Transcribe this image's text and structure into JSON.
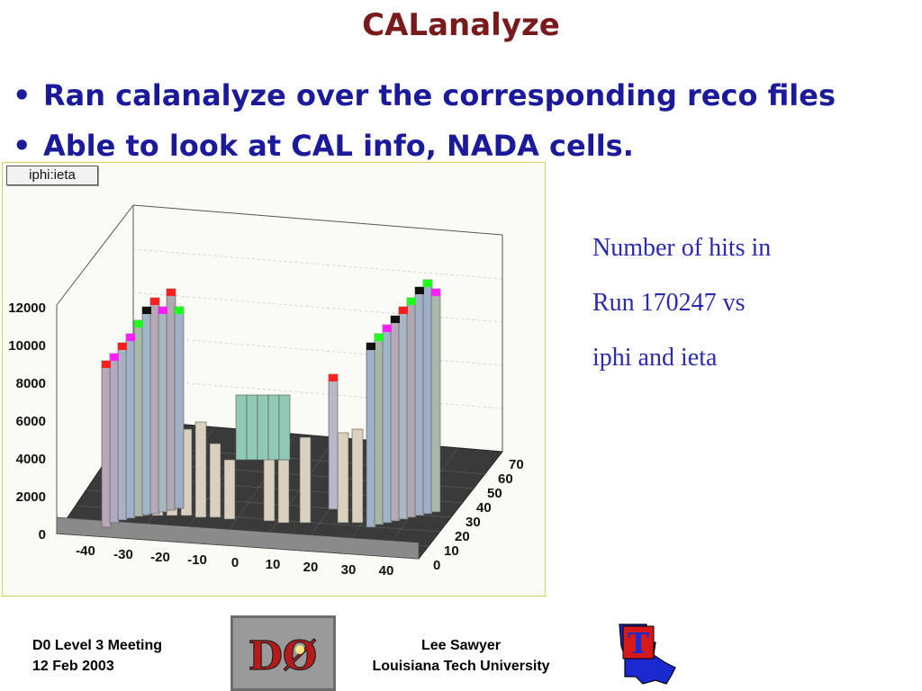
{
  "slide": {
    "title": "CALanalyze",
    "bullets": [
      {
        "text": "Ran calanalyze over the corresponding reco files"
      },
      {
        "text": "Able to look at CAL info, NADA cells."
      }
    ]
  },
  "plot": {
    "tag": "iphi:ieta",
    "z_ticks": [
      "12000",
      "10000",
      "8000",
      "6000",
      "4000",
      "2000",
      "0"
    ],
    "ieta_ticks": [
      "-40",
      "-30",
      "-20",
      "-10",
      "0",
      "10",
      "20",
      "30",
      "40"
    ],
    "iphi_ticks": [
      "70",
      "60",
      "50",
      "40",
      "30",
      "20",
      "10",
      "0"
    ]
  },
  "side_note": {
    "lines": [
      "Number of hits in",
      "Run 170247 vs",
      "iphi and ieta"
    ]
  },
  "footer": {
    "left": [
      "D0 Level 3 Meeting",
      "12 Feb 2003"
    ],
    "center": [
      "Lee Sawyer",
      "Louisiana Tech University"
    ]
  },
  "logos": {
    "d0_letters": "DØ",
    "tech_letter": "T"
  },
  "colors": {
    "title": "#7a1b1b",
    "bullets": "#1a1a9a",
    "side_note": "#2a2ab0"
  }
}
